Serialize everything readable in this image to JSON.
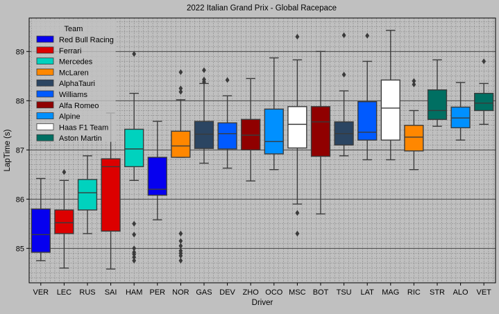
{
  "chart_data": {
    "type": "box",
    "title": "2022 Italian Grand Prix - Global Racepace",
    "xlabel": "Driver",
    "ylabel": "LapTime (s)",
    "ylim": [
      84.3,
      89.68
    ],
    "yticks": [
      85,
      86,
      87,
      88,
      89
    ],
    "grid": {
      "major": true,
      "minor": true
    },
    "legend": {
      "title": "Team",
      "placement": "top-left",
      "entries": [
        {
          "team": "Red Bull Racing",
          "color": "#0600ef"
        },
        {
          "team": "Ferrari",
          "color": "#dc0000"
        },
        {
          "team": "Mercedes",
          "color": "#00d2be"
        },
        {
          "team": "McLaren",
          "color": "#ff8700"
        },
        {
          "team": "AlphaTauri",
          "color": "#2b4562"
        },
        {
          "team": "Williams",
          "color": "#005aff"
        },
        {
          "team": "Alfa Romeo",
          "color": "#900000"
        },
        {
          "team": "Alpine",
          "color": "#0090ff"
        },
        {
          "team": "Haas F1 Team",
          "color": "#ffffff"
        },
        {
          "team": "Aston Martin",
          "color": "#006f62"
        }
      ]
    },
    "boxes": [
      {
        "driver": "VER",
        "team": "Red Bull Racing",
        "whisker_low": 84.75,
        "q1": 84.92,
        "median": 85.28,
        "q3": 85.8,
        "whisker_high": 86.42,
        "outliers": []
      },
      {
        "driver": "LEC",
        "team": "Ferrari",
        "whisker_low": 84.6,
        "q1": 85.3,
        "median": 85.52,
        "q3": 85.78,
        "whisker_high": 86.38,
        "outliers": [
          86.55
        ]
      },
      {
        "driver": "RUS",
        "team": "Mercedes",
        "whisker_low": 85.3,
        "q1": 85.78,
        "median": 86.13,
        "q3": 86.4,
        "whisker_high": 86.88,
        "outliers": []
      },
      {
        "driver": "SAI",
        "team": "Ferrari",
        "whisker_low": 84.58,
        "q1": 85.35,
        "median": 86.66,
        "q3": 86.82,
        "whisker_high": 87.75,
        "outliers": []
      },
      {
        "driver": "HAM",
        "team": "Mercedes",
        "whisker_low": 86.38,
        "q1": 86.66,
        "median": 87.02,
        "q3": 87.42,
        "whisker_high": 88.15,
        "outliers": [
          88.95,
          85.5,
          85.28,
          85.0,
          84.92,
          84.88,
          84.82,
          84.75
        ]
      },
      {
        "driver": "PER",
        "team": "Red Bull Racing",
        "whisker_low": 85.58,
        "q1": 86.08,
        "median": 86.2,
        "q3": 86.85,
        "whisker_high": 87.58,
        "outliers": []
      },
      {
        "driver": "NOR",
        "team": "McLaren",
        "whisker_low": 86.85,
        "q1": 86.85,
        "median": 87.08,
        "q3": 87.38,
        "whisker_high": 88.02,
        "outliers": [
          88.58,
          88.25,
          88.18,
          85.3,
          85.15,
          85.05,
          84.95,
          84.9,
          84.85,
          84.75
        ]
      },
      {
        "driver": "GAS",
        "team": "AlphaTauri",
        "whisker_low": 86.73,
        "q1": 87.03,
        "median": 87.32,
        "q3": 87.58,
        "whisker_high": 88.35,
        "outliers": [
          88.62,
          88.43,
          88.38
        ]
      },
      {
        "driver": "DEV",
        "team": "Williams",
        "whisker_low": 86.63,
        "q1": 87.02,
        "median": 87.33,
        "q3": 87.55,
        "whisker_high": 88.1,
        "outliers": [
          88.42
        ]
      },
      {
        "driver": "ZHO",
        "team": "Alfa Romeo",
        "whisker_low": 86.37,
        "q1": 87.0,
        "median": 87.3,
        "q3": 87.62,
        "whisker_high": 88.45,
        "outliers": []
      },
      {
        "driver": "OCO",
        "team": "Alpine",
        "whisker_low": 86.6,
        "q1": 86.92,
        "median": 87.17,
        "q3": 87.83,
        "whisker_high": 88.87,
        "outliers": []
      },
      {
        "driver": "MSC",
        "team": "Haas F1 Team",
        "whisker_low": 85.9,
        "q1": 87.04,
        "median": 87.52,
        "q3": 87.88,
        "whisker_high": 88.83,
        "outliers": [
          89.3,
          85.72,
          85.3
        ]
      },
      {
        "driver": "BOT",
        "team": "Alfa Romeo",
        "whisker_low": 85.7,
        "q1": 86.87,
        "median": 87.57,
        "q3": 87.88,
        "whisker_high": 89.0,
        "outliers": []
      },
      {
        "driver": "TSU",
        "team": "AlphaTauri",
        "whisker_low": 86.88,
        "q1": 87.1,
        "median": 87.33,
        "q3": 87.57,
        "whisker_high": 88.2,
        "outliers": [
          89.33,
          88.53
        ]
      },
      {
        "driver": "LAT",
        "team": "Williams",
        "whisker_low": 86.8,
        "q1": 87.2,
        "median": 87.36,
        "q3": 87.98,
        "whisker_high": 88.8,
        "outliers": [
          89.32
        ]
      },
      {
        "driver": "MAG",
        "team": "Haas F1 Team",
        "whisker_low": 86.8,
        "q1": 87.2,
        "median": 87.85,
        "q3": 88.42,
        "whisker_high": 89.43,
        "outliers": []
      },
      {
        "driver": "RIC",
        "team": "McLaren",
        "whisker_low": 86.6,
        "q1": 86.98,
        "median": 87.26,
        "q3": 87.5,
        "whisker_high": 87.8,
        "outliers": [
          88.4,
          88.33
        ]
      },
      {
        "driver": "STR",
        "team": "Aston Martin",
        "whisker_low": 87.48,
        "q1": 87.62,
        "median": 87.8,
        "q3": 88.22,
        "whisker_high": 88.83,
        "outliers": []
      },
      {
        "driver": "ALO",
        "team": "Alpine",
        "whisker_low": 87.2,
        "q1": 87.45,
        "median": 87.65,
        "q3": 87.87,
        "whisker_high": 88.37,
        "outliers": []
      },
      {
        "driver": "VET",
        "team": "Aston Martin",
        "whisker_low": 87.52,
        "q1": 87.8,
        "median": 87.95,
        "q3": 88.15,
        "whisker_high": 88.35,
        "outliers": [
          88.8
        ]
      }
    ]
  }
}
